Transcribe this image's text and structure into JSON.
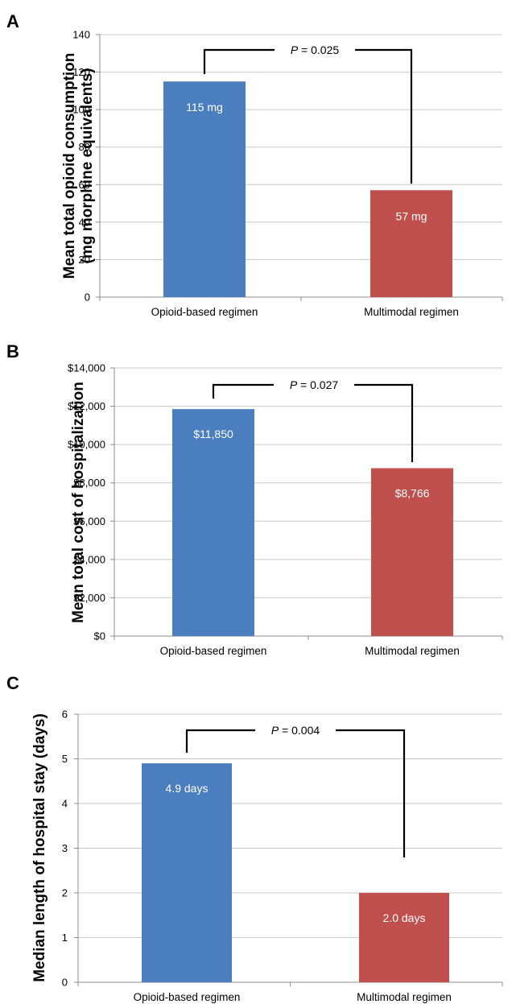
{
  "colors": {
    "opioid": "#4a7ebf",
    "multimodal": "#c0504d",
    "grid": "#c8c8c8",
    "axis": "#8c8c8c",
    "bracket": "#000000"
  },
  "chart_data": [
    {
      "type": "bar",
      "panel": "A",
      "categories": [
        "Opioid-based regimen",
        "Multimodal regimen"
      ],
      "values": [
        115,
        57
      ],
      "data_labels": [
        "115 mg",
        "57 mg"
      ],
      "ylabel_lines": [
        "Mean total opioid consumption",
        "(mg morphine equivalents)"
      ],
      "ylim": [
        0,
        140
      ],
      "yticks": [
        0,
        20,
        40,
        60,
        80,
        100,
        120,
        140
      ],
      "ytick_labels": [
        "0",
        "20",
        "40",
        "60",
        "80",
        "100",
        "120",
        "140"
      ],
      "grid": true,
      "significance": {
        "p_symbol": "P",
        "p_text": " = 0.025"
      }
    },
    {
      "type": "bar",
      "panel": "B",
      "categories": [
        "Opioid-based regimen",
        "Multimodal regimen"
      ],
      "values": [
        11850,
        8766
      ],
      "data_labels": [
        "$11,850",
        "$8,766"
      ],
      "ylabel_lines": [
        "Mean total cost of hospitalization"
      ],
      "ylim": [
        0,
        14000
      ],
      "yticks": [
        0,
        2000,
        4000,
        6000,
        8000,
        10000,
        12000,
        14000
      ],
      "ytick_labels": [
        "$0",
        "$2,000",
        "$4,000",
        "$6,000",
        "$8,000",
        "$10,000",
        "$12,000",
        "$14,000"
      ],
      "grid": true,
      "significance": {
        "p_symbol": "P",
        "p_text": " = 0.027"
      }
    },
    {
      "type": "bar",
      "panel": "C",
      "categories": [
        "Opioid-based regimen",
        "Multimodal regimen"
      ],
      "values": [
        4.9,
        2.0
      ],
      "data_labels": [
        "4.9 days",
        "2.0 days"
      ],
      "ylabel_lines": [
        "Median length of hospital stay (days)"
      ],
      "ylim": [
        0,
        6
      ],
      "yticks": [
        0,
        1,
        2,
        3,
        4,
        5,
        6
      ],
      "ytick_labels": [
        "0",
        "1",
        "2",
        "3",
        "4",
        "5",
        "6"
      ],
      "grid": true,
      "significance": {
        "p_symbol": "P",
        "p_text": " = 0.004"
      }
    }
  ]
}
